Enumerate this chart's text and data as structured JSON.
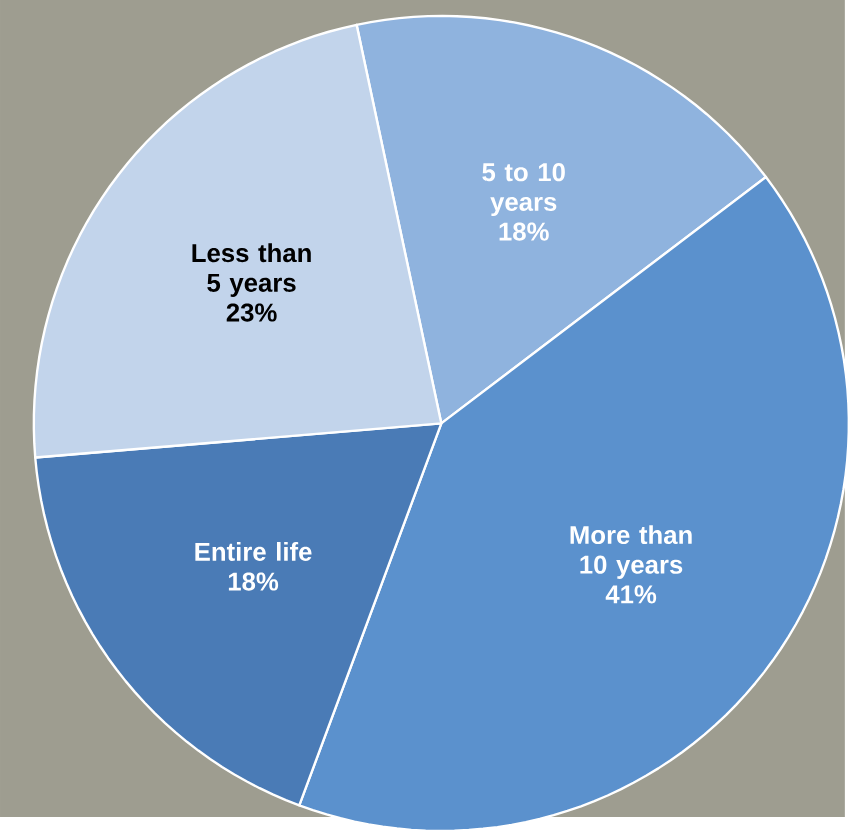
{
  "chart_data": {
    "type": "pie",
    "categories": [
      "5 to 10 years",
      "More than 10 years",
      "Entire life",
      "Less than 5 years"
    ],
    "values": [
      18,
      41,
      18,
      23
    ],
    "value_labels": [
      "18%",
      "41%",
      "18%",
      "23%"
    ],
    "colors": [
      "#8fb3de",
      "#5b91cd",
      "#4a7bb6",
      "#c2d4eb"
    ]
  }
}
